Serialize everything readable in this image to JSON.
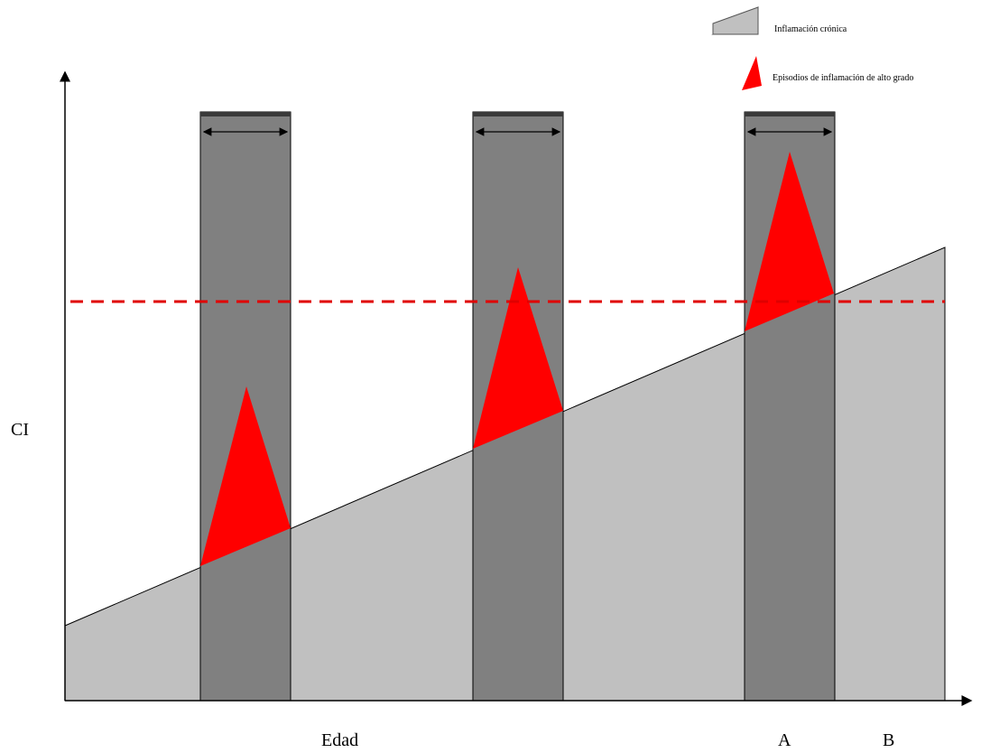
{
  "legend": {
    "chronic_label": "Inflamación crónica",
    "episodes_label": "Episodios de inflamación de alto grado"
  },
  "axes": {
    "y_label": "CI",
    "x_label": "Edad",
    "marker_a": "A",
    "marker_b": "B"
  },
  "colors": {
    "chronic_fill": "#c0c0c0",
    "episode_bar": "#808080",
    "episode_peak": "#ff0000",
    "threshold_line": "#e00000"
  }
}
